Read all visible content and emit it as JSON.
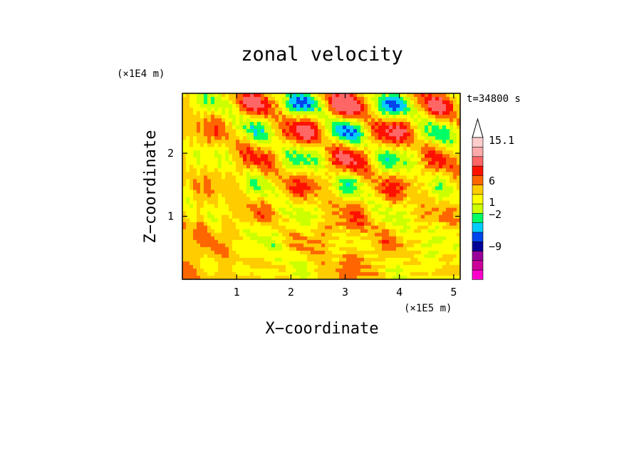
{
  "chart_data": {
    "type": "heatmap",
    "title": "zonal velocity",
    "xlabel": "X−coordinate",
    "ylabel": "Z−coordinate",
    "x_unit": "(×1E5 m)",
    "y_unit": "(×1E4 m)",
    "time_label": "t=34800 s",
    "xlim": [
      0,
      5.12
    ],
    "ylim": [
      0,
      2.95
    ],
    "x_ticks": [
      "1",
      "2",
      "3",
      "4",
      "5"
    ],
    "y_ticks": [
      "1",
      "2"
    ],
    "colorbar": {
      "colors": [
        "#ff00cc",
        "#cc0099",
        "#990099",
        "#000099",
        "#0044ee",
        "#00ccff",
        "#00ff66",
        "#ccff00",
        "#ffff00",
        "#ffcc00",
        "#ff6600",
        "#ff1100",
        "#ff6666",
        "#ffaaaa",
        "#ffcccc"
      ],
      "tick_labels": [
        "15.1",
        "6",
        "1",
        "−2",
        "−9"
      ],
      "tick_values": [
        15.1,
        6,
        1,
        -2,
        -9
      ],
      "extend": "max"
    },
    "field_description": "contoured zonal wind field u(x,z); banded wave pattern with positive (orange) and negative (blue) bands radiating upward from x≈3"
  }
}
